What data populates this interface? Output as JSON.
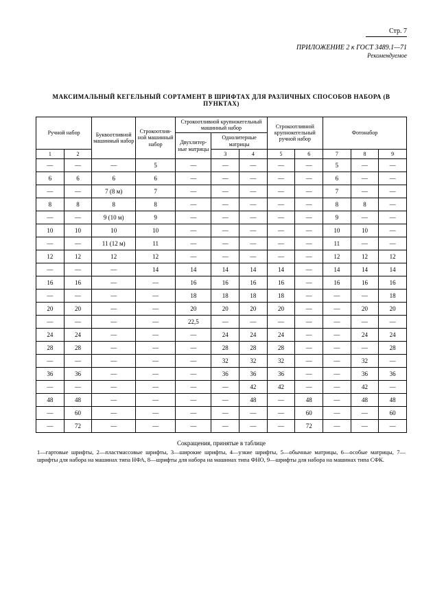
{
  "page_number_label": "Стр. 7",
  "appendix_line": "ПРИЛОЖЕНИЕ 2 к ГОСТ 3489.1—71",
  "recommended": "Рекомендуемое",
  "title": "МАКСИМАЛЬНЫЙ КЕГЕЛЬНЫЙ СОРТАМЕНТ В ШРИФТАХ ДЛЯ РАЗЛИЧНЫХ СПОСОБОВ НАБОРА (В ПУНКТАХ)",
  "header": {
    "group1": "Ручной набор",
    "col_b": "Буквоотливной машинный набор",
    "col_c": "Строкоотлив­ной машинный набор",
    "group2": "Строкоотливной крупнокегельный машинный набор",
    "group2a": "Двухлитер­ные матрицы",
    "group2b": "Однолитерные матрицы",
    "group3": "Строкоотливной крупнокегельный ручной набор",
    "group4": "Фотонабор",
    "c1": "1",
    "c2": "2",
    "c3": "3",
    "c4": "4",
    "c5": "5",
    "c6": "6",
    "c7": "7",
    "c8": "8",
    "c9": "9"
  },
  "rows": [
    [
      "—",
      "—",
      "—",
      "5",
      "—",
      "—",
      "—",
      "—",
      "—",
      "5",
      "—",
      "—"
    ],
    [
      "6",
      "6",
      "6",
      "6",
      "—",
      "—",
      "—",
      "—",
      "—",
      "6",
      "—",
      "—"
    ],
    [
      "—",
      "—",
      "7 (8 м)",
      "7",
      "—",
      "—",
      "—",
      "—",
      "—",
      "7",
      "—",
      "—"
    ],
    [
      "8",
      "8",
      "8",
      "8",
      "—",
      "—",
      "—",
      "—",
      "—",
      "8",
      "8",
      "—"
    ],
    [
      "—",
      "—",
      "9 (10 м)",
      "9",
      "—",
      "—",
      "—",
      "—",
      "—",
      "9",
      "—",
      "—"
    ],
    [
      "10",
      "10",
      "10",
      "10",
      "—",
      "—",
      "—",
      "—",
      "—",
      "10",
      "10",
      "—"
    ],
    [
      "—",
      "—",
      "11 (12 м)",
      "11",
      "—",
      "—",
      "—",
      "—",
      "—",
      "11",
      "—",
      "—"
    ],
    [
      "12",
      "12",
      "12",
      "12",
      "—",
      "—",
      "—",
      "—",
      "—",
      "12",
      "12",
      "12"
    ],
    [
      "—",
      "—",
      "—",
      "14",
      "14",
      "14",
      "14",
      "14",
      "—",
      "14",
      "14",
      "14"
    ],
    [
      "16",
      "16",
      "—",
      "—",
      "16",
      "16",
      "16",
      "16",
      "—",
      "16",
      "16",
      "16"
    ],
    [
      "—",
      "—",
      "—",
      "—",
      "18",
      "18",
      "18",
      "18",
      "—",
      "—",
      "—",
      "18"
    ],
    [
      "20",
      "20",
      "—",
      "—",
      "20",
      "20",
      "20",
      "20",
      "—",
      "—",
      "20",
      "20"
    ],
    [
      "—",
      "—",
      "—",
      "—",
      "22,5",
      "—",
      "—",
      "—",
      "—",
      "—",
      "—",
      "—"
    ],
    [
      "24",
      "24",
      "—",
      "—",
      "—",
      "24",
      "24",
      "24",
      "—",
      "—",
      "24",
      "24"
    ],
    [
      "28",
      "28",
      "—",
      "—",
      "—",
      "28",
      "28",
      "28",
      "—",
      "—",
      "—",
      "28"
    ],
    [
      "—",
      "—",
      "—",
      "—",
      "—",
      "32",
      "32",
      "32",
      "—",
      "—",
      "32",
      "—"
    ],
    [
      "36",
      "36",
      "—",
      "—",
      "—",
      "36",
      "36",
      "36",
      "—",
      "—",
      "36",
      "36"
    ],
    [
      "—",
      "—",
      "—",
      "—",
      "—",
      "—",
      "42",
      "42",
      "—",
      "—",
      "42",
      "—"
    ],
    [
      "48",
      "48",
      "—",
      "—",
      "—",
      "—",
      "48",
      "—",
      "48",
      "—",
      "48",
      "48"
    ],
    [
      "—",
      "60",
      "—",
      "—",
      "—",
      "—",
      "—",
      "—",
      "60",
      "—",
      "—",
      "60"
    ],
    [
      "—",
      "72",
      "—",
      "—",
      "—",
      "—",
      "—",
      "—",
      "72",
      "—",
      "—",
      "—"
    ]
  ],
  "foot_title": "Сокращения, принятые в таблице",
  "foot": "1—гартовые шрифты, 2—пластмассовые шрифты, 3—широкие шрифты, 4—узкие шрифты, 5—обычные матрицы, 6—особые матрицы, 7—шрифты для набора на машинах типа НФА, 8—шрифты для набора на машинах типа ФНО, 9—шрифты для набора на машинах типа СФК.",
  "column_widths_pct": [
    7,
    7,
    11,
    10,
    9,
    7,
    7,
    7,
    7,
    7,
    7,
    7
  ]
}
